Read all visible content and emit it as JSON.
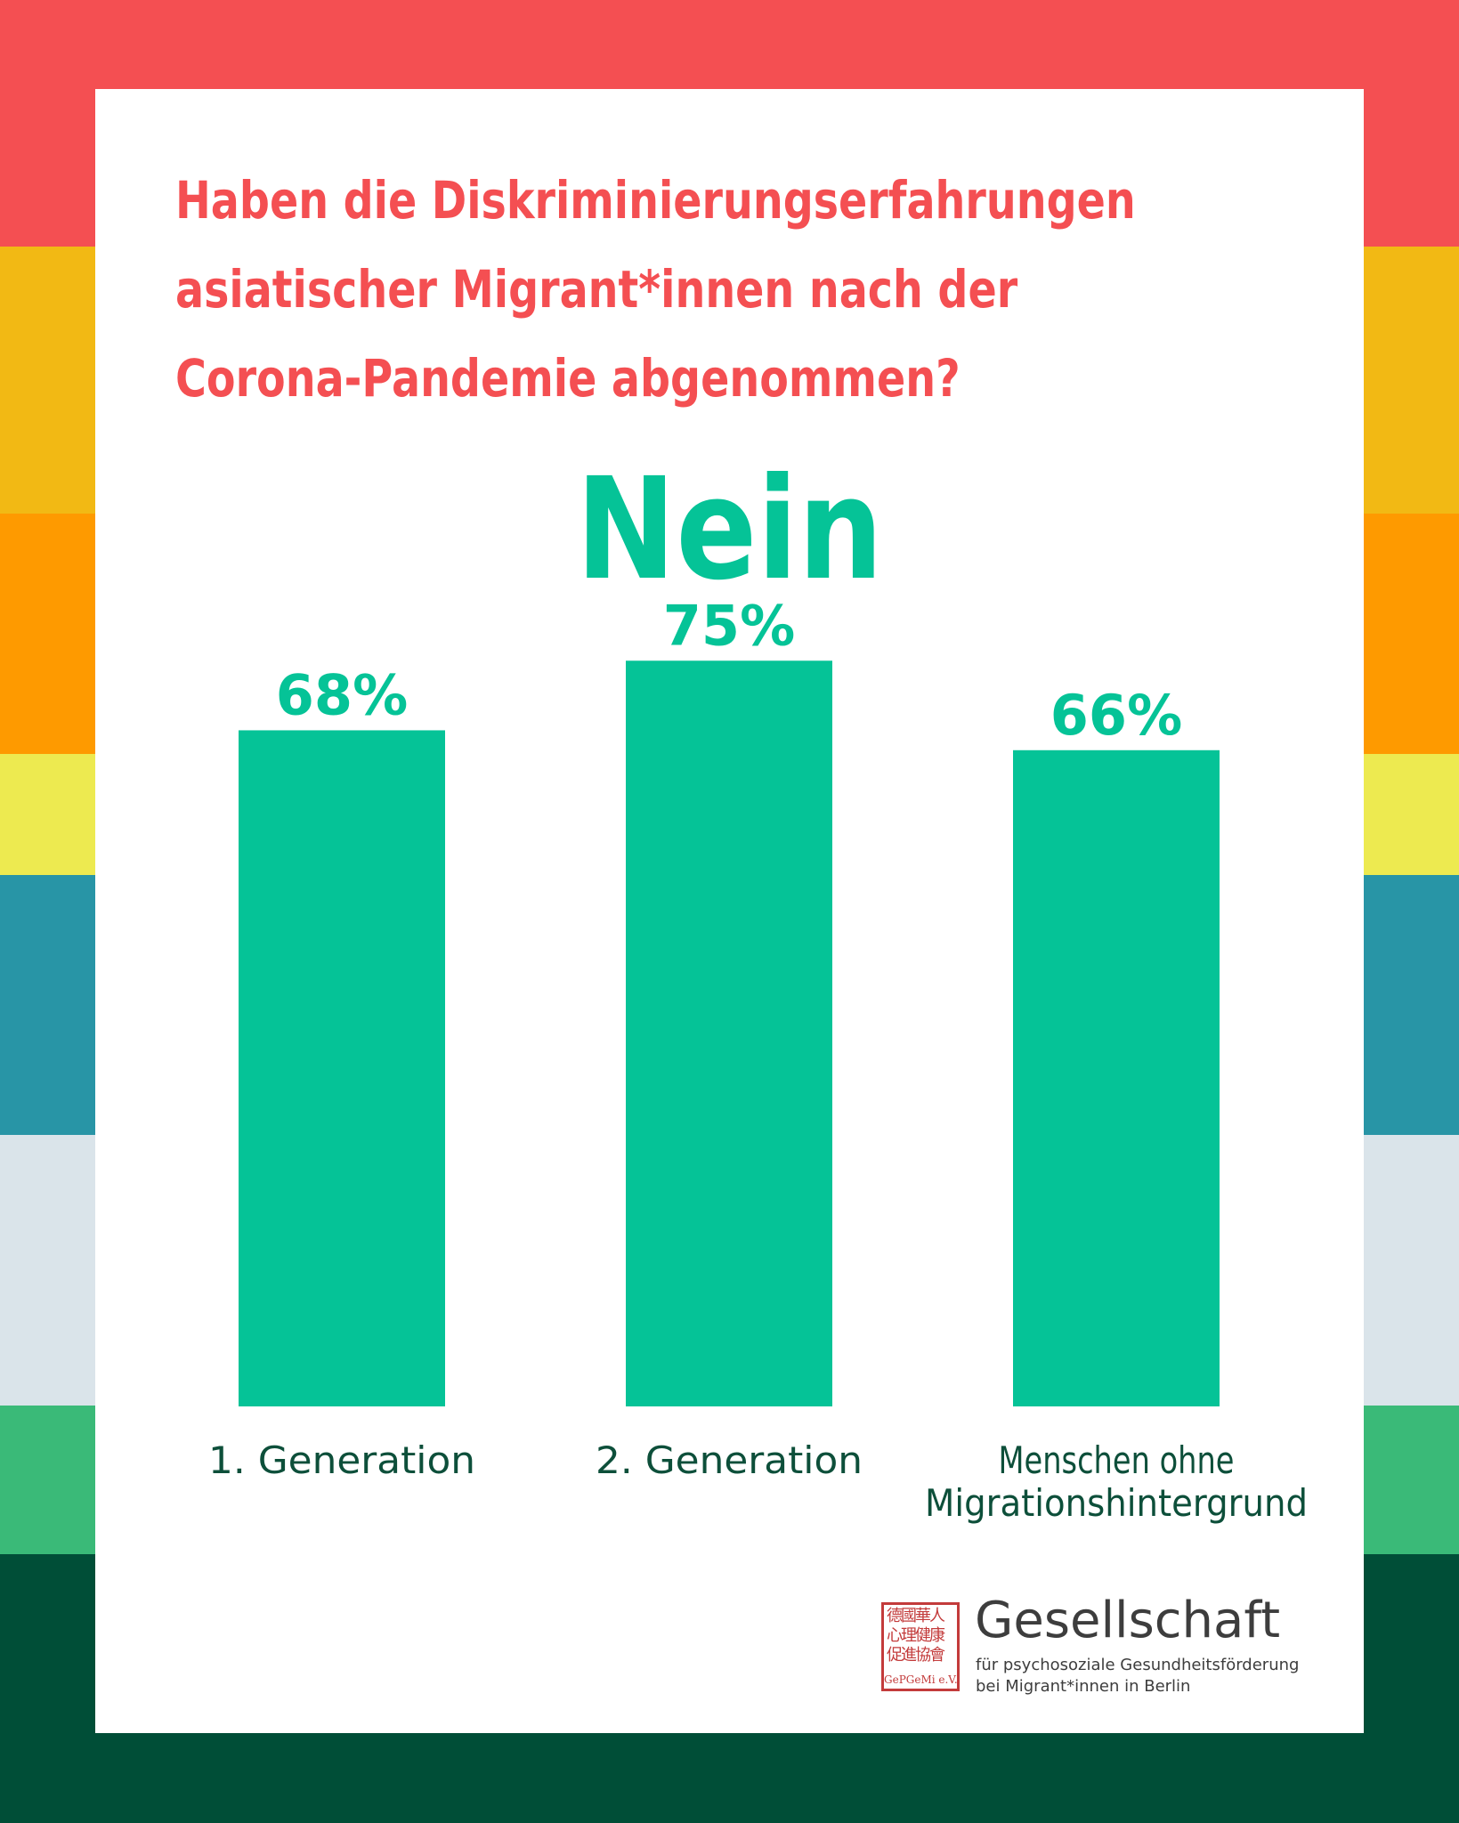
{
  "theme": {
    "stripe_colors": [
      "#f44f52",
      "#f2b914",
      "#fe9a00",
      "#edea50",
      "#2895a6",
      "#dae4ea",
      "#3aba78",
      "#004e37"
    ],
    "card_background": "#ffffff",
    "title_color": "#f44f52",
    "bar_color": "#05c397",
    "category_label_color": "#0d4f3a"
  },
  "chart_data": {
    "type": "bar",
    "title": "Haben die Diskriminierungserfahrungen asiatischer Migrant*innen nach der Corona-Pandemie abgenommen?",
    "title_lines": [
      "Haben die Diskriminierungserfahrungen",
      "asiatischer Migrant*innen nach der",
      "Corona-Pandemie abgenommen?"
    ],
    "subtitle": "Nein",
    "categories": [
      [
        "1.  Generation"
      ],
      [
        "2.  Generation"
      ],
      [
        "Menschen ohne",
        "Migrationshintergrund"
      ]
    ],
    "values": [
      68,
      75,
      66
    ],
    "value_labels": [
      "68%",
      "75%",
      "66%"
    ],
    "unit": "%",
    "grid": false,
    "legend": "none"
  },
  "logo": {
    "seal_glyphs": "德國華人心理健康促進協會",
    "seal_text": "GePGeMi e.V.",
    "name": "Gesellschaft",
    "subtitle_lines": [
      "für psychosoziale Gesundheitsförderung",
      "bei Migrant*innen in Berlin"
    ]
  }
}
